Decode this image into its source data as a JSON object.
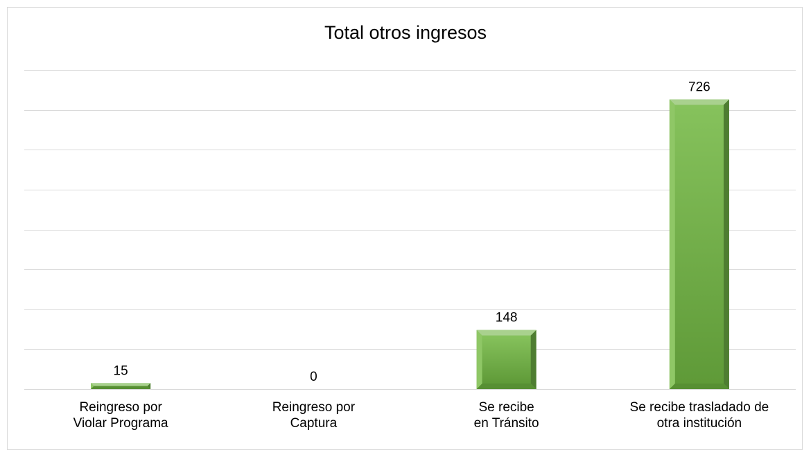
{
  "chart_data": {
    "type": "bar",
    "title": "Total otros ingresos",
    "categories": [
      "Reingreso por\nViolar Programa",
      "Reingreso por\nCaptura",
      "Se recibe\nen Tránsito",
      "Se recibe trasladado de\notra institución"
    ],
    "values": [
      15,
      0,
      148,
      726
    ],
    "data_labels": [
      "15",
      "0",
      "148",
      "726"
    ],
    "ylim": [
      0,
      800
    ],
    "y_gridlines": [
      0,
      100,
      200,
      300,
      400,
      500,
      600,
      700,
      800
    ],
    "y_tick_labels_shown": false,
    "grid": true,
    "legend": "none",
    "bar_color": "#70ad47",
    "bar_highlight": "#a9d18e",
    "bar_shadow": "#4e7d31"
  }
}
